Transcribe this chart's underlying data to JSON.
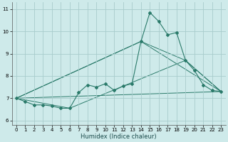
{
  "xlabel": "Humidex (Indice chaleur)",
  "xlim": [
    -0.5,
    23.5
  ],
  "ylim": [
    5.8,
    11.3
  ],
  "yticks": [
    6,
    7,
    8,
    9,
    10,
    11
  ],
  "xticks": [
    0,
    1,
    2,
    3,
    4,
    5,
    6,
    7,
    8,
    9,
    10,
    11,
    12,
    13,
    14,
    15,
    16,
    17,
    18,
    19,
    20,
    21,
    22,
    23
  ],
  "bg_color": "#ceeaea",
  "grid_color": "#a8cccc",
  "line_color": "#2a7a6a",
  "main_x": [
    0,
    1,
    2,
    3,
    4,
    5,
    6,
    7,
    8,
    9,
    10,
    11,
    12,
    13,
    14,
    15,
    16,
    17,
    18,
    19,
    20,
    21,
    22,
    23
  ],
  "main_y": [
    7.0,
    6.85,
    6.7,
    6.7,
    6.65,
    6.55,
    6.55,
    7.25,
    7.6,
    7.5,
    7.65,
    7.35,
    7.55,
    7.65,
    9.55,
    10.85,
    10.45,
    9.85,
    9.95,
    8.7,
    8.25,
    7.6,
    7.35,
    7.3
  ],
  "env_lines": [
    {
      "x": [
        0,
        14,
        19,
        23
      ],
      "y": [
        7.0,
        9.55,
        8.7,
        7.3
      ]
    },
    {
      "x": [
        0,
        6,
        19,
        23
      ],
      "y": [
        7.0,
        6.55,
        8.7,
        7.3
      ]
    },
    {
      "x": [
        0,
        23
      ],
      "y": [
        7.0,
        7.3
      ]
    },
    {
      "x": [
        0,
        14,
        23
      ],
      "y": [
        7.0,
        9.55,
        7.3
      ]
    }
  ]
}
